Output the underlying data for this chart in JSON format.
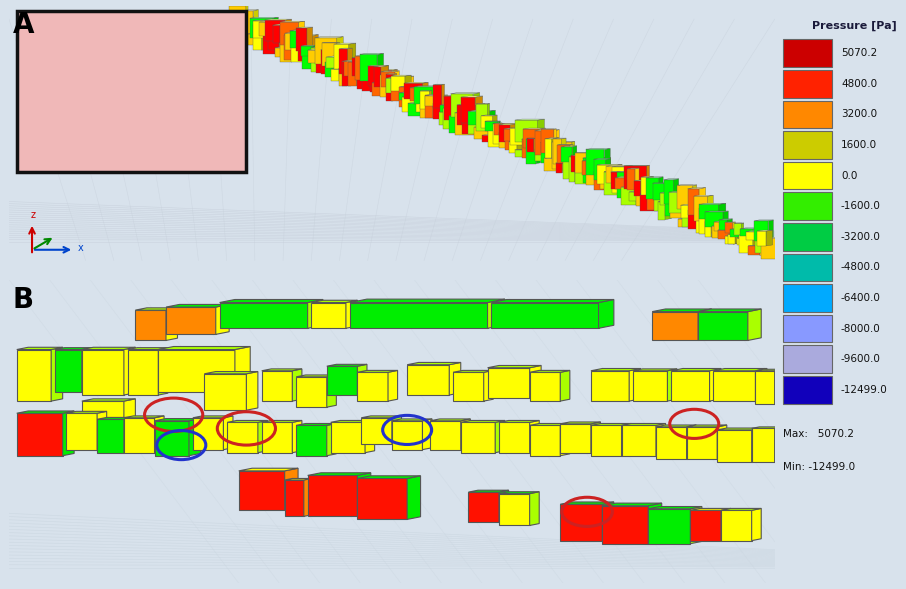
{
  "bg_color": "#d8e2ec",
  "panel_A_bg": "#d8e2ec",
  "panel_B_bg": "#d8e2ec",
  "inset_bg": "#f0b8b8",
  "legend_title": "Pressure [Pa]",
  "legend_labels": [
    "5070.2",
    "4800.0",
    "3200.0",
    "1600.0",
    "0.0",
    "-1600.0",
    "-3200.0",
    "-4800.0",
    "-6400.0",
    "-8000.0",
    "-9600.0",
    "-12499.0"
  ],
  "legend_colors": [
    "#cc0000",
    "#ff2200",
    "#ff8800",
    "#cccc00",
    "#ffff00",
    "#33ee00",
    "#00cc44",
    "#00bbaa",
    "#00aaff",
    "#8899ff",
    "#aaaadd",
    "#1100bb"
  ],
  "legend_max": "Max:   5070.2",
  "legend_min": "Min: -12499.0",
  "label_A": "A",
  "label_B": "B",
  "fig_width": 9.06,
  "fig_height": 5.89,
  "dpi": 100
}
